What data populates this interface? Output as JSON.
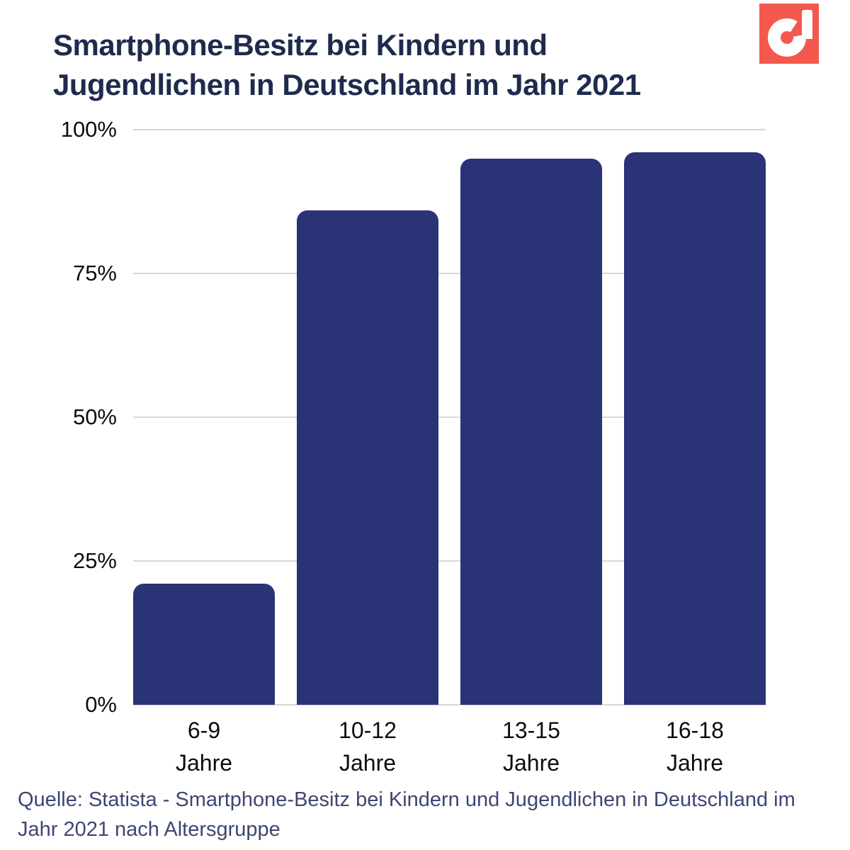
{
  "header": {
    "title_line1": "Smartphone-Besitz bei Kindern und",
    "title_line2": "Jugendlichen in Deutschland im Jahr 2021"
  },
  "logo": {
    "name": "d-logo",
    "background_color": "#f4574d",
    "glyph_color": "#ffffff"
  },
  "chart_data": {
    "type": "bar",
    "title": "Smartphone-Besitz bei Kindern und Jugendlichen in Deutschland im Jahr 2021",
    "categories": [
      "6-9 Jahre",
      "10-12 Jahre",
      "13-15 Jahre",
      "16-18 Jahre"
    ],
    "values": [
      21,
      86,
      95,
      96
    ],
    "unit": "%",
    "xlabel": "",
    "ylabel": "",
    "ylim": [
      0,
      100
    ],
    "yticks": [
      0,
      25,
      50,
      75,
      100
    ],
    "ytick_labels": [
      "0%",
      "25%",
      "50%",
      "75%",
      "100%"
    ],
    "bar_color": "#2a3376",
    "grid": true,
    "gridline_color": "#d8d8d8",
    "legend": "none"
  },
  "source": {
    "line1": "Quelle: Statista - Smartphone-Besitz bei Kindern und Jugendlichen in Deutschland im",
    "line2": "Jahr 2021 nach Altersgruppe"
  }
}
